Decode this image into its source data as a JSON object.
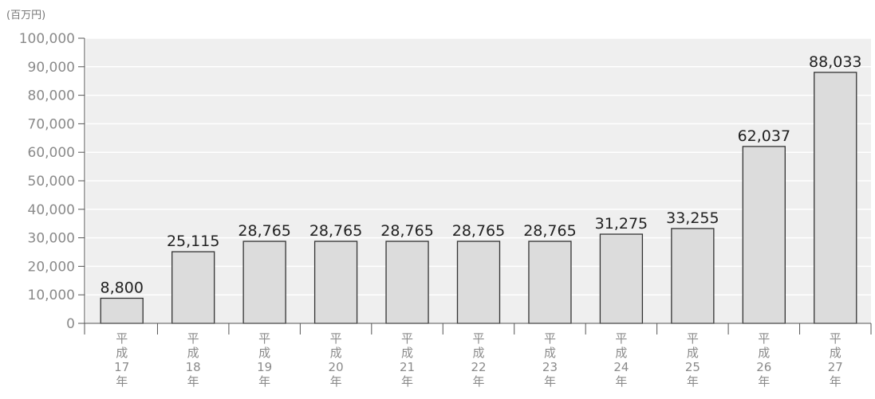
{
  "chart_data": {
    "type": "bar",
    "unit_label": "(百万円)",
    "categories": [
      [
        "平",
        "成",
        "17",
        "年"
      ],
      [
        "平",
        "成",
        "18",
        "年"
      ],
      [
        "平",
        "成",
        "19",
        "年"
      ],
      [
        "平",
        "成",
        "20",
        "年"
      ],
      [
        "平",
        "成",
        "21",
        "年"
      ],
      [
        "平",
        "成",
        "22",
        "年"
      ],
      [
        "平",
        "成",
        "23",
        "年"
      ],
      [
        "平",
        "成",
        "24",
        "年"
      ],
      [
        "平",
        "成",
        "25",
        "年"
      ],
      [
        "平",
        "成",
        "26",
        "年"
      ],
      [
        "平",
        "成",
        "27",
        "年"
      ]
    ],
    "values": [
      8800,
      25115,
      28765,
      28765,
      28765,
      28765,
      28765,
      31275,
      33255,
      62037,
      88033
    ],
    "data_labels": [
      "8,800",
      "25,115",
      "28,765",
      "28,765",
      "28,765",
      "28,765",
      "28,765",
      "31,275",
      "33,255",
      "62,037",
      "88,033"
    ],
    "yticks": [
      "0",
      "10,000",
      "20,000",
      "30,000",
      "40,000",
      "50,000",
      "60,000",
      "70,000",
      "80,000",
      "90,000",
      "100,000"
    ],
    "ylim": [
      0,
      100000
    ],
    "grid": true,
    "colors": {
      "plot_background": "#efefef",
      "grid": "#ffffff",
      "bar_fill": "#dcdcdc",
      "bar_stroke": "#333333"
    }
  }
}
